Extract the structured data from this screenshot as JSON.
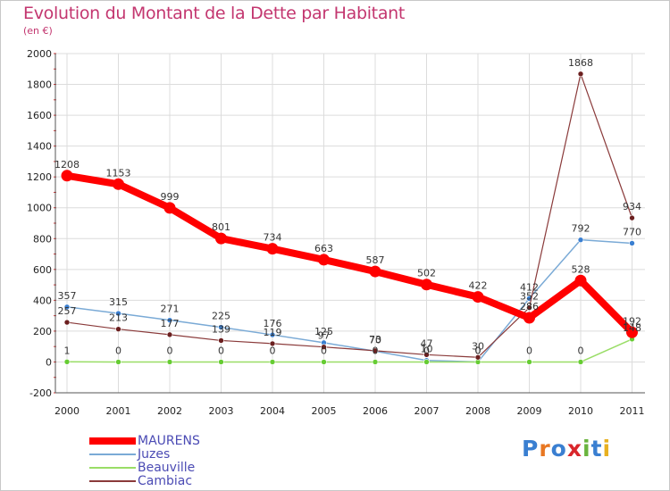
{
  "chart_data": {
    "type": "line",
    "title": "Evolution du Montant de la Dette par Habitant",
    "subtitle": "(en €)",
    "xlabel": "",
    "ylabel": "",
    "x": [
      "2000",
      "2001",
      "2002",
      "2003",
      "2004",
      "2005",
      "2006",
      "2007",
      "2008",
      "2009",
      "2010",
      "2011"
    ],
    "ylim": [
      -200,
      2000
    ],
    "yticks": [
      -200,
      0,
      200,
      400,
      600,
      800,
      1000,
      1200,
      1400,
      1600,
      1800,
      2000
    ],
    "grid": true,
    "legend": "bottom-left",
    "series": [
      {
        "name": "MAURENS",
        "color": "#ff0000",
        "values": [
          1208,
          1153,
          999,
          801,
          734,
          663,
          587,
          502,
          422,
          286,
          528,
          192
        ]
      },
      {
        "name": "Juzes",
        "color": "#6b9fcf",
        "values": [
          357,
          315,
          271,
          225,
          176,
          125,
          70,
          10,
          0,
          412,
          792,
          770
        ]
      },
      {
        "name": "Beauville",
        "color": "#99dd66",
        "values": [
          1,
          0,
          0,
          0,
          0,
          0,
          0,
          0,
          0,
          0,
          0,
          148
        ]
      },
      {
        "name": "Cambiac",
        "color": "#7a2a2a",
        "values": [
          257,
          213,
          177,
          139,
          119,
          97,
          73,
          47,
          30,
          352,
          1868,
          934
        ]
      }
    ],
    "point_labels": [
      {
        "series": "MAURENS",
        "values": [
          "1208",
          "1153",
          "999",
          "801",
          "734",
          "663",
          "587",
          "502",
          "422",
          "286",
          "528",
          "192"
        ]
      },
      {
        "series": "Juzes",
        "values": [
          "357",
          "315",
          "271",
          "225",
          "176",
          "125",
          "70",
          "10",
          "0",
          "412",
          "792",
          "770"
        ]
      },
      {
        "series": "Beauville",
        "values": [
          "1",
          "0",
          "0",
          "0",
          "0",
          "0",
          "0",
          "0",
          "0",
          "0",
          "0",
          "148"
        ]
      },
      {
        "series": "Cambiac",
        "values": [
          "257",
          "213",
          "177",
          "139",
          "119",
          "97",
          "73",
          "47",
          "30",
          "352",
          "1868",
          "934"
        ]
      }
    ]
  },
  "brand": {
    "letters": [
      "P",
      "r",
      "o",
      "x",
      "i",
      "t",
      "i"
    ],
    "colors": [
      "#3a7fd1",
      "#e87722",
      "#3a7fd1",
      "#d9262b",
      "#6ab43e",
      "#3a7fd1",
      "#e8b020"
    ]
  }
}
